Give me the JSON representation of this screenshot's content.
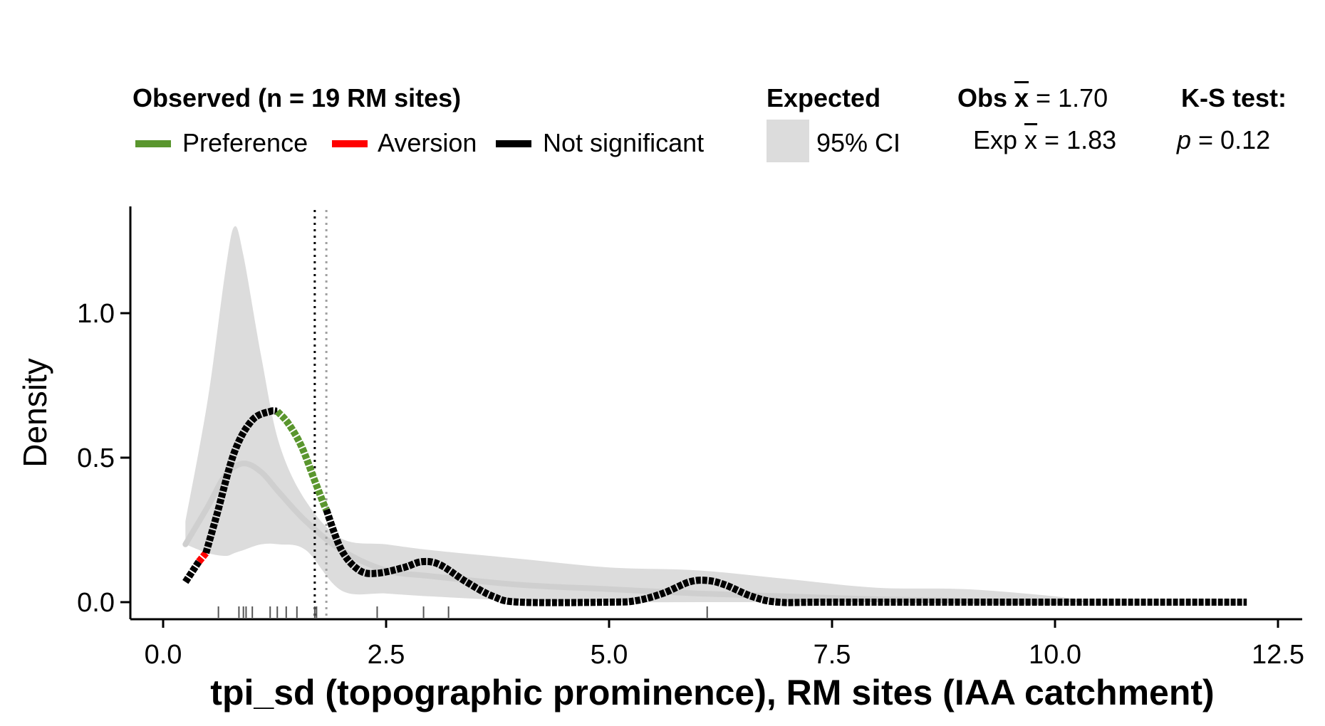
{
  "legend": {
    "observed_title": "Observed (n = 19 RM sites)",
    "preference": "Preference",
    "aversion": "Aversion",
    "not_significant": "Not significant",
    "expected_title": "Expected",
    "ci_label": "95% CI",
    "obs_mean_prefix": "Obs ",
    "obs_mean_x": "x",
    "obs_mean_value": " = 1.70",
    "exp_mean_prefix": "Exp ",
    "exp_mean_x": "x",
    "exp_mean_value": " = 1.83",
    "ks_title": "K-S test:",
    "ks_p_label": "p",
    "ks_p_value": " = 0.12"
  },
  "colors": {
    "preference": "#5a962e",
    "aversion": "#ff0000",
    "not_significant": "#000000",
    "ci_band": "#dcdcdc",
    "expected_mean_line": "#cfcfcf",
    "observed_mean_vline": "#000000",
    "expected_mean_vline": "#a0a0a0"
  },
  "chart_data": {
    "type": "line",
    "xlabel": "tpi_sd (topographic prominence), RM sites (IAA catchment)",
    "ylabel": "Density",
    "xlim": [
      -0.7,
      12.5
    ],
    "ylim": [
      -0.06,
      1.37
    ],
    "x_ticks": [
      0.0,
      2.5,
      5.0,
      7.5,
      10.0,
      12.5
    ],
    "x_tick_labels": [
      "0.0",
      "2.5",
      "5.0",
      "7.5",
      "10.0",
      "12.5"
    ],
    "y_ticks": [
      0.0,
      0.5,
      1.0
    ],
    "y_tick_labels": [
      "0.0",
      "0.5",
      "1.0"
    ],
    "grid": false,
    "legend_position": "top",
    "observed_mean": 1.7,
    "expected_mean": 1.83,
    "ks_p": 0.12,
    "rug": [
      0.62,
      0.85,
      0.9,
      0.93,
      1.0,
      1.2,
      1.28,
      1.38,
      1.5,
      1.7,
      1.72,
      2.4,
      2.92,
      3.2,
      6.1
    ],
    "expected_ci": {
      "x": [
        0.25,
        0.5,
        0.7,
        0.8,
        0.9,
        1.1,
        1.3,
        1.6,
        2.0,
        2.5,
        3.0,
        4.0,
        5.0,
        6.0,
        7.0,
        8.0,
        9.0,
        10.0,
        10.4
      ],
      "lower": [
        0.2,
        0.17,
        0.16,
        0.17,
        0.18,
        0.2,
        0.2,
        0.18,
        0.04,
        0.03,
        0.02,
        0.005,
        0.0,
        0.0,
        0.0,
        0.0,
        0.0,
        0.0,
        0.0
      ],
      "upper": [
        0.28,
        0.7,
        1.15,
        1.3,
        1.2,
        0.85,
        0.55,
        0.35,
        0.22,
        0.2,
        0.18,
        0.15,
        0.12,
        0.11,
        0.08,
        0.05,
        0.045,
        0.02,
        0.0
      ]
    },
    "expected_mean_curve": {
      "x": [
        0.25,
        0.5,
        0.7,
        0.9,
        1.1,
        1.3,
        1.6,
        2.0,
        2.5,
        3.0,
        4.0,
        5.0,
        6.0,
        7.0,
        8.0,
        9.0,
        10.0
      ],
      "y": [
        0.2,
        0.33,
        0.44,
        0.48,
        0.45,
        0.38,
        0.28,
        0.18,
        0.11,
        0.09,
        0.06,
        0.045,
        0.03,
        0.02,
        0.01,
        0.005,
        0.0
      ]
    },
    "series": [
      {
        "name": "Not significant",
        "x": [
          0.25,
          0.4
        ],
        "y": [
          0.07,
          0.14
        ]
      },
      {
        "name": "Aversion",
        "x": [
          0.4,
          0.48
        ],
        "y": [
          0.14,
          0.17
        ]
      },
      {
        "name": "Not significant",
        "x": [
          0.48,
          0.6,
          0.8,
          1.0,
          1.2,
          1.28
        ],
        "y": [
          0.17,
          0.3,
          0.52,
          0.63,
          0.66,
          0.66
        ]
      },
      {
        "name": "Preference",
        "x": [
          1.28,
          1.4,
          1.55,
          1.7,
          1.8,
          1.83
        ],
        "y": [
          0.66,
          0.62,
          0.54,
          0.42,
          0.34,
          0.32
        ]
      },
      {
        "name": "Not significant",
        "x": [
          1.83,
          2.0,
          2.2,
          2.4,
          2.7,
          2.9,
          3.1,
          3.4,
          3.7,
          4.0,
          5.0,
          5.3,
          5.6,
          5.9,
          6.1,
          6.3,
          6.6,
          6.9,
          7.5,
          10.0,
          12.15
        ],
        "y": [
          0.32,
          0.18,
          0.11,
          0.1,
          0.12,
          0.14,
          0.13,
          0.07,
          0.02,
          0.0,
          0.0,
          0.005,
          0.03,
          0.07,
          0.075,
          0.06,
          0.02,
          0.0,
          0.0,
          0.0,
          0.0
        ]
      }
    ]
  }
}
